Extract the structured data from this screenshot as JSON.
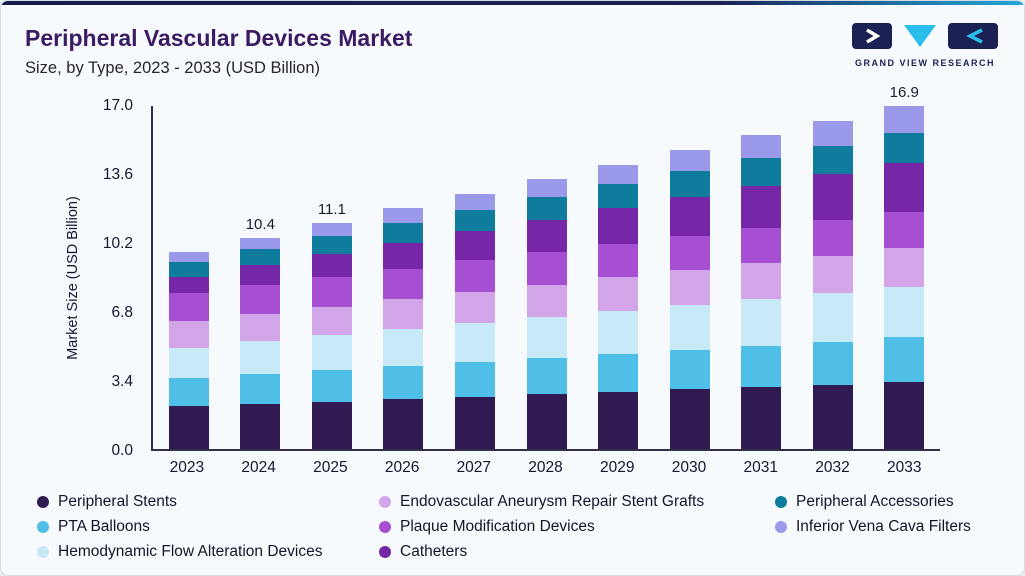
{
  "header": {
    "title": "Peripheral Vascular Devices Market",
    "subtitle": "Size, by Type, 2023 - 2033 (USD Billion)",
    "logo_text": "GRAND VIEW RESEARCH"
  },
  "colors": {
    "accent_navy": "#1B2153",
    "accent_cyan": "#29BDEB",
    "title_purple": "#3B1B63"
  },
  "chart_data": {
    "type": "bar",
    "stacked": true,
    "title": "Peripheral Vascular Devices Market Size, by Type, 2023 - 2033 (USD Billion)",
    "xlabel": "",
    "ylabel": "Market Size (USD Billion)",
    "ylim": [
      0,
      17.0
    ],
    "yticks": [
      0.0,
      3.4,
      6.8,
      10.2,
      13.6,
      17.0
    ],
    "grid": false,
    "legend_position": "bottom",
    "categories": [
      "2023",
      "2024",
      "2025",
      "2026",
      "2027",
      "2028",
      "2029",
      "2030",
      "2031",
      "2032",
      "2033"
    ],
    "bar_labels": [
      "",
      "10.4",
      "11.1",
      "",
      "",
      "",
      "",
      "",
      "",
      "",
      "16.9"
    ],
    "series": [
      {
        "name": "Peripheral Stents",
        "color": "#2F1A52",
        "values": [
          2.1,
          2.22,
          2.34,
          2.46,
          2.58,
          2.7,
          2.82,
          2.94,
          3.06,
          3.18,
          3.3
        ]
      },
      {
        "name": "PTA Balloons",
        "color": "#4FBFE8",
        "values": [
          1.4,
          1.48,
          1.56,
          1.64,
          1.72,
          1.8,
          1.88,
          1.96,
          2.04,
          2.12,
          2.2
        ]
      },
      {
        "name": "Hemodynamic Flow Alteration Devices",
        "color": "#C8E9F8",
        "values": [
          1.5,
          1.6,
          1.7,
          1.8,
          1.9,
          2.0,
          2.1,
          2.2,
          2.3,
          2.4,
          2.5
        ]
      },
      {
        "name": "Endovascular Aneurysm Repair Stent Grafts",
        "color": "#D2A5E9",
        "values": [
          1.3,
          1.36,
          1.42,
          1.48,
          1.54,
          1.6,
          1.66,
          1.72,
          1.78,
          1.84,
          1.9
        ]
      },
      {
        "name": "Plaque Modification Devices",
        "color": "#A74FD3",
        "values": [
          1.4,
          1.44,
          1.48,
          1.52,
          1.56,
          1.6,
          1.64,
          1.68,
          1.72,
          1.76,
          1.8
        ]
      },
      {
        "name": "Catheters",
        "color": "#7527A8",
        "values": [
          0.8,
          0.96,
          1.12,
          1.28,
          1.44,
          1.6,
          1.76,
          1.92,
          2.08,
          2.24,
          2.4
        ]
      },
      {
        "name": "Peripheral Accessories",
        "color": "#0F7C9E",
        "values": [
          0.7,
          0.78,
          0.86,
          0.94,
          1.02,
          1.1,
          1.18,
          1.26,
          1.34,
          1.42,
          1.5
        ]
      },
      {
        "name": "Inferior Vena Cava Filters",
        "color": "#9B99EA",
        "values": [
          0.5,
          0.58,
          0.66,
          0.74,
          0.82,
          0.9,
          0.98,
          1.06,
          1.14,
          1.22,
          1.3
        ]
      }
    ],
    "legend_columns": [
      [
        0,
        1,
        2
      ],
      [
        3,
        4,
        5
      ],
      [
        6,
        7
      ]
    ]
  }
}
